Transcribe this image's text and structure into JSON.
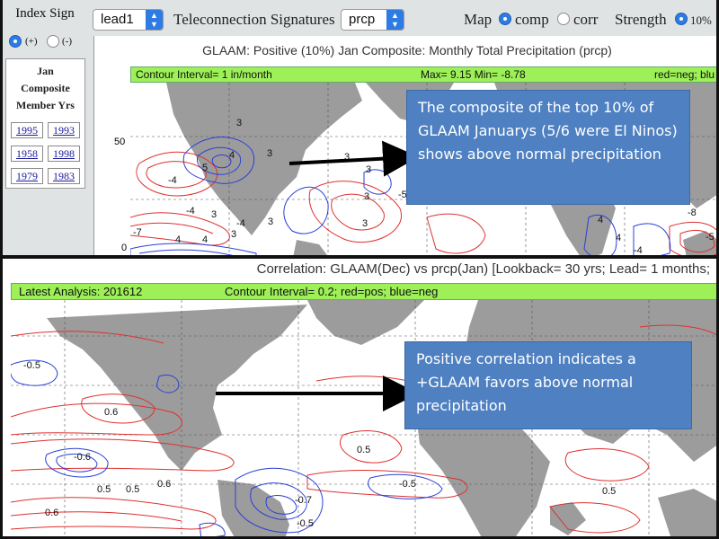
{
  "sidebar": {
    "title": "Index Sign",
    "plus_label": "(+)",
    "minus_label": "(-)",
    "member_title_lines": [
      "Jan",
      "Composite",
      "Member Yrs"
    ],
    "years": [
      "1995",
      "1993",
      "1958",
      "1998",
      "1979",
      "1983"
    ]
  },
  "toolbar": {
    "lead_select": "lead1",
    "teleconnection_label": "Teleconnection Signatures",
    "variable_select": "prcp",
    "map_label": "Map",
    "comp_label": "comp",
    "corr_label": "corr",
    "strength_label": "Strength",
    "strength_value": "10%"
  },
  "top_chart": {
    "title": "GLAAM: Positive (10%) Jan Composite: Monthly Total Precipitation (prcp)",
    "contour_interval": "Contour Interval= 1 in/month",
    "max_min": "Max= 9.15  Min= -8.78",
    "color_key": "red=neg; blu",
    "lat_labels": [
      "50",
      "0"
    ],
    "contour_labels": [
      "3",
      "3",
      "5",
      "4",
      "-4",
      "-4",
      "3",
      "-4",
      "3",
      "3",
      "3",
      "-5",
      "3",
      "-7",
      "4",
      "4",
      "3",
      "3",
      "4",
      "-8",
      "-5",
      "4",
      "-4"
    ]
  },
  "top_callout": "The composite of the top 10% of GLAAM Januarys (5/6 were El Ninos) shows above normal precipitation",
  "bottom_chart": {
    "title": "Correlation: GLAAM(Dec) vs prcp(Jan) [Lookback= 30 yrs;  Lead= 1 months;",
    "latest": "Latest Analysis: 201612",
    "contour_interval": "Contour Interval= 0.2; red=pos; blue=neg",
    "contour_labels": [
      "-0.5",
      "0.6",
      "-0.6",
      "0.5",
      "0.5",
      "0.6",
      "0.6",
      "-0.7",
      "-0.5",
      "-0.5",
      "0.5",
      "0.5"
    ]
  },
  "bottom_callout": "Positive correlation indicates a +GLAAM favors above normal precipitation",
  "colors": {
    "callout_bg": "#4e80c2",
    "info_bar": "#9df057",
    "land": "#9c9c9c",
    "positive_contour": "#e03030",
    "negative_contour": "#2a3fd8",
    "radio_selected": "#2f7be4"
  }
}
